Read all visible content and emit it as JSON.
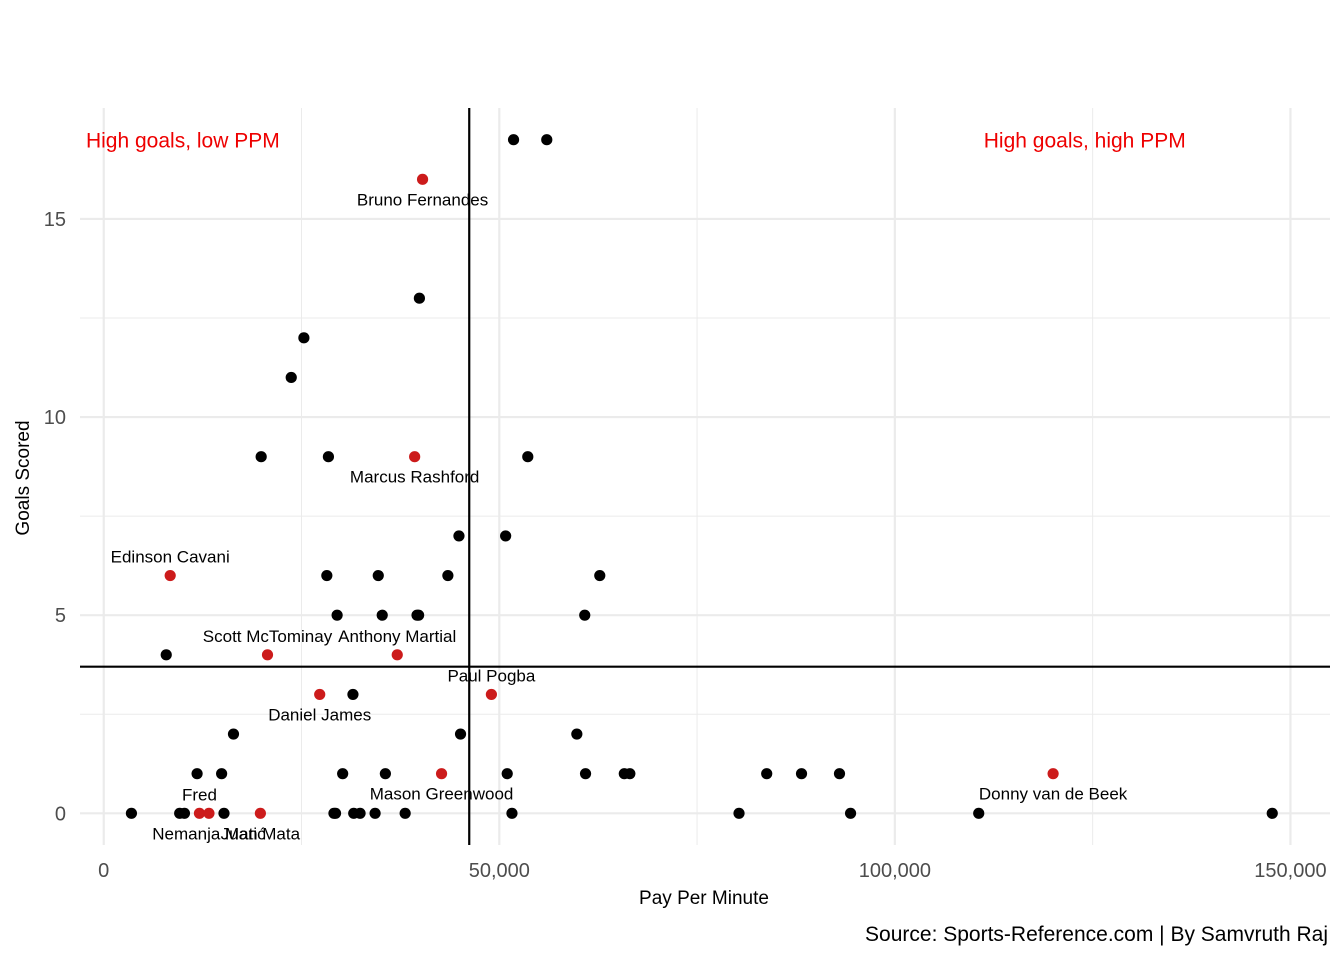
{
  "chart_data": {
    "type": "scatter",
    "xlabel": "Pay Per Minute",
    "ylabel": "Goals Scored",
    "caption": "Source: Sports-Reference.com | By Samvruth Raj",
    "xlim": [
      -3000,
      155000
    ],
    "ylim": [
      -0.8,
      17.8
    ],
    "x_ticks": [
      0,
      50000,
      100000,
      150000
    ],
    "x_tick_labels": [
      "0",
      "50,000",
      "100,000",
      "150,000"
    ],
    "y_ticks": [
      0,
      5,
      10,
      15
    ],
    "y_tick_labels": [
      "0",
      "5",
      "10",
      "15"
    ],
    "grid": true,
    "reference_lines": {
      "x": 46200,
      "y": 3.7
    },
    "colors": {
      "default_point": "#000000",
      "highlight_point": "#cc1b1b",
      "quadrant_text": "#ee0000",
      "grid": "#ebebeb",
      "reference_line": "#000000"
    },
    "quadrant_labels": [
      {
        "text": "High goals, low PPM",
        "x": 10000,
        "y": 17
      },
      {
        "text": "High goals, high PPM",
        "x": 124000,
        "y": 17
      }
    ],
    "highlighted": [
      {
        "name": "Bruno Fernandes",
        "x": 40300,
        "y": 16,
        "label_pos": "below"
      },
      {
        "name": "Marcus Rashford",
        "x": 39300,
        "y": 9,
        "label_pos": "below"
      },
      {
        "name": "Edinson Cavani",
        "x": 8400,
        "y": 6,
        "label_pos": "above"
      },
      {
        "name": "Scott McTominay",
        "x": 20700,
        "y": 4,
        "label_pos": "above"
      },
      {
        "name": "Anthony Martial",
        "x": 37100,
        "y": 4,
        "label_pos": "above"
      },
      {
        "name": "Paul Pogba",
        "x": 49000,
        "y": 3,
        "label_pos": "above"
      },
      {
        "name": "Daniel James",
        "x": 27300,
        "y": 3,
        "label_pos": "below"
      },
      {
        "name": "Mason Greenwood",
        "x": 42700,
        "y": 1,
        "label_pos": "below"
      },
      {
        "name": "Donny van de Beek",
        "x": 120000,
        "y": 1,
        "label_pos": "below"
      },
      {
        "name": "Fred",
        "x": 12100,
        "y": 0,
        "label_pos": "above"
      },
      {
        "name": "Nemanja Matić",
        "x": 13300,
        "y": 0,
        "label_pos": "below"
      },
      {
        "name": "Juan Mata",
        "x": 19800,
        "y": 0,
        "label_pos": "below"
      }
    ],
    "others": [
      {
        "x": 51800,
        "y": 17
      },
      {
        "x": 56000,
        "y": 17
      },
      {
        "x": 39900,
        "y": 13
      },
      {
        "x": 25300,
        "y": 12
      },
      {
        "x": 23700,
        "y": 11
      },
      {
        "x": 19900,
        "y": 9
      },
      {
        "x": 28400,
        "y": 9
      },
      {
        "x": 53600,
        "y": 9
      },
      {
        "x": 44900,
        "y": 7
      },
      {
        "x": 50800,
        "y": 7
      },
      {
        "x": 28200,
        "y": 6
      },
      {
        "x": 34700,
        "y": 6
      },
      {
        "x": 43500,
        "y": 6
      },
      {
        "x": 62700,
        "y": 6
      },
      {
        "x": 29500,
        "y": 5
      },
      {
        "x": 35200,
        "y": 5
      },
      {
        "x": 39600,
        "y": 5
      },
      {
        "x": 39800,
        "y": 5
      },
      {
        "x": 60800,
        "y": 5
      },
      {
        "x": 7900,
        "y": 4
      },
      {
        "x": 31500,
        "y": 3
      },
      {
        "x": 16400,
        "y": 2
      },
      {
        "x": 45100,
        "y": 2
      },
      {
        "x": 59800,
        "y": 2
      },
      {
        "x": 11800,
        "y": 1
      },
      {
        "x": 14900,
        "y": 1
      },
      {
        "x": 30200,
        "y": 1
      },
      {
        "x": 35600,
        "y": 1
      },
      {
        "x": 51000,
        "y": 1
      },
      {
        "x": 60900,
        "y": 1
      },
      {
        "x": 65800,
        "y": 1
      },
      {
        "x": 66500,
        "y": 1
      },
      {
        "x": 83800,
        "y": 1
      },
      {
        "x": 88200,
        "y": 1
      },
      {
        "x": 93000,
        "y": 1
      },
      {
        "x": 3500,
        "y": 0
      },
      {
        "x": 9600,
        "y": 0
      },
      {
        "x": 10200,
        "y": 0
      },
      {
        "x": 15200,
        "y": 0
      },
      {
        "x": 29100,
        "y": 0
      },
      {
        "x": 29300,
        "y": 0
      },
      {
        "x": 31600,
        "y": 0
      },
      {
        "x": 32400,
        "y": 0
      },
      {
        "x": 34300,
        "y": 0
      },
      {
        "x": 38100,
        "y": 0
      },
      {
        "x": 51600,
        "y": 0
      },
      {
        "x": 80300,
        "y": 0
      },
      {
        "x": 94400,
        "y": 0
      },
      {
        "x": 110600,
        "y": 0
      },
      {
        "x": 147700,
        "y": 0
      }
    ]
  }
}
